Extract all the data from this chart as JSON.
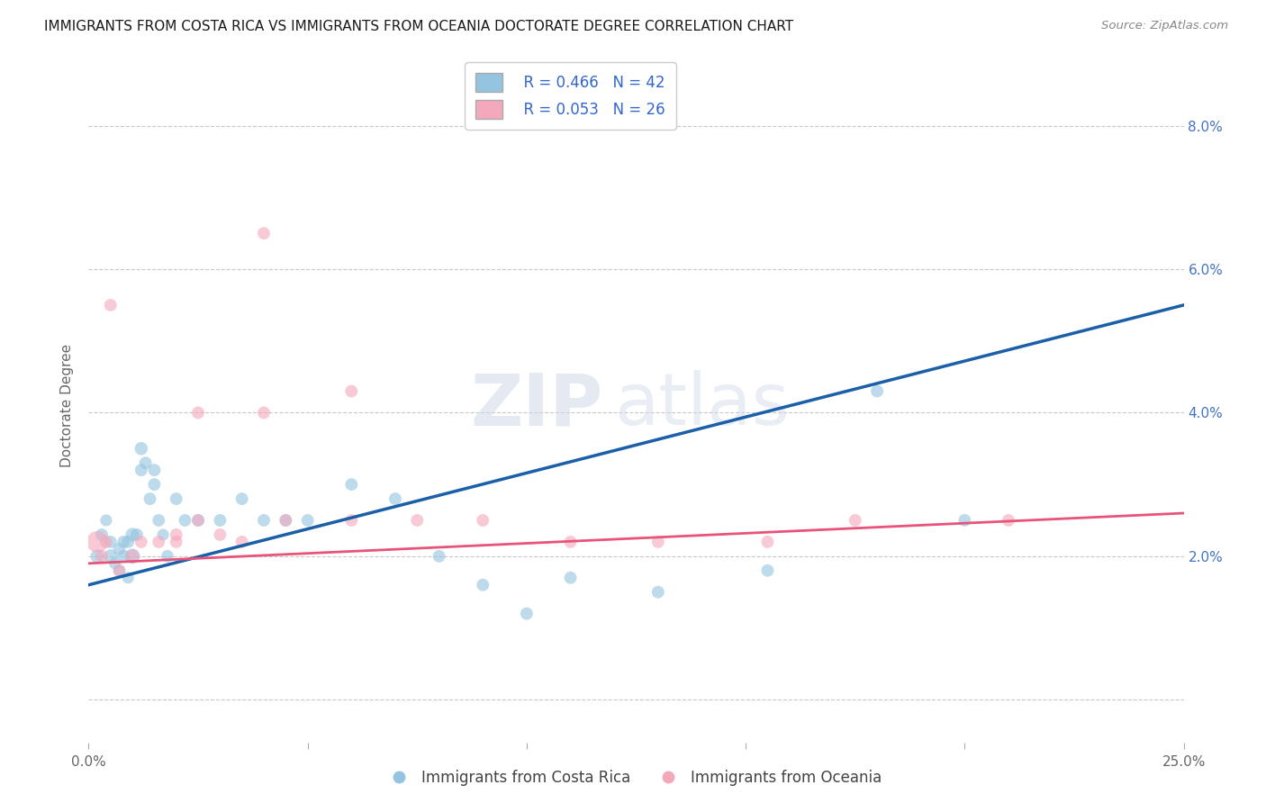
{
  "title": "IMMIGRANTS FROM COSTA RICA VS IMMIGRANTS FROM OCEANIA DOCTORATE DEGREE CORRELATION CHART",
  "source": "Source: ZipAtlas.com",
  "ylabel": "Doctorate Degree",
  "y_ticks": [
    0.0,
    0.02,
    0.04,
    0.06,
    0.08
  ],
  "y_tick_labels": [
    "",
    "2.0%",
    "4.0%",
    "6.0%",
    "8.0%"
  ],
  "xlim": [
    0.0,
    0.25
  ],
  "ylim": [
    -0.006,
    0.088
  ],
  "legend_r1": "R = 0.466",
  "legend_n1": "N = 42",
  "legend_r2": "R = 0.053",
  "legend_n2": "N = 26",
  "color_blue": "#94c4e0",
  "color_pink": "#f4a8bc",
  "color_blue_line": "#1a5fa8",
  "color_pink_line": "#e8537a",
  "blue_scatter_x": [
    0.002,
    0.003,
    0.004,
    0.005,
    0.005,
    0.006,
    0.007,
    0.007,
    0.008,
    0.008,
    0.009,
    0.009,
    0.01,
    0.01,
    0.011,
    0.012,
    0.012,
    0.013,
    0.014,
    0.015,
    0.015,
    0.016,
    0.017,
    0.018,
    0.02,
    0.022,
    0.025,
    0.03,
    0.035,
    0.04,
    0.045,
    0.05,
    0.06,
    0.07,
    0.08,
    0.09,
    0.1,
    0.11,
    0.13,
    0.155,
    0.18,
    0.2
  ],
  "blue_scatter_y": [
    0.02,
    0.023,
    0.025,
    0.022,
    0.02,
    0.019,
    0.021,
    0.018,
    0.02,
    0.022,
    0.017,
    0.022,
    0.02,
    0.023,
    0.023,
    0.032,
    0.035,
    0.033,
    0.028,
    0.03,
    0.032,
    0.025,
    0.023,
    0.02,
    0.028,
    0.025,
    0.025,
    0.025,
    0.028,
    0.025,
    0.025,
    0.025,
    0.03,
    0.028,
    0.02,
    0.016,
    0.012,
    0.017,
    0.015,
    0.018,
    0.043,
    0.025
  ],
  "pink_scatter_x": [
    0.002,
    0.003,
    0.004,
    0.005,
    0.007,
    0.01,
    0.012,
    0.016,
    0.02,
    0.025,
    0.03,
    0.035,
    0.04,
    0.045,
    0.06,
    0.075,
    0.09,
    0.11,
    0.13,
    0.155,
    0.175,
    0.21,
    0.02,
    0.025,
    0.04,
    0.06
  ],
  "pink_scatter_y": [
    0.022,
    0.02,
    0.022,
    0.055,
    0.018,
    0.02,
    0.022,
    0.022,
    0.023,
    0.025,
    0.023,
    0.022,
    0.04,
    0.025,
    0.025,
    0.025,
    0.025,
    0.022,
    0.022,
    0.022,
    0.025,
    0.025,
    0.022,
    0.04,
    0.065,
    0.043
  ],
  "blue_scatter_sizes": [
    120,
    100,
    90,
    100,
    120,
    90,
    100,
    90,
    100,
    100,
    90,
    100,
    150,
    120,
    100,
    100,
    110,
    100,
    100,
    100,
    100,
    100,
    90,
    100,
    100,
    100,
    100,
    100,
    100,
    100,
    100,
    100,
    100,
    100,
    100,
    100,
    100,
    100,
    100,
    100,
    100,
    100
  ],
  "pink_scatter_sizes": [
    300,
    100,
    100,
    100,
    100,
    120,
    100,
    100,
    100,
    100,
    100,
    100,
    100,
    100,
    100,
    100,
    100,
    100,
    100,
    100,
    100,
    100,
    100,
    100,
    100,
    100
  ],
  "blue_line_y_start": 0.016,
  "blue_line_y_end": 0.055,
  "pink_line_y_start": 0.019,
  "pink_line_y_end": 0.026,
  "watermark_zip": "ZIP",
  "watermark_atlas": "atlas",
  "grid_color": "#c8c8c8",
  "bg_color": "#ffffff"
}
